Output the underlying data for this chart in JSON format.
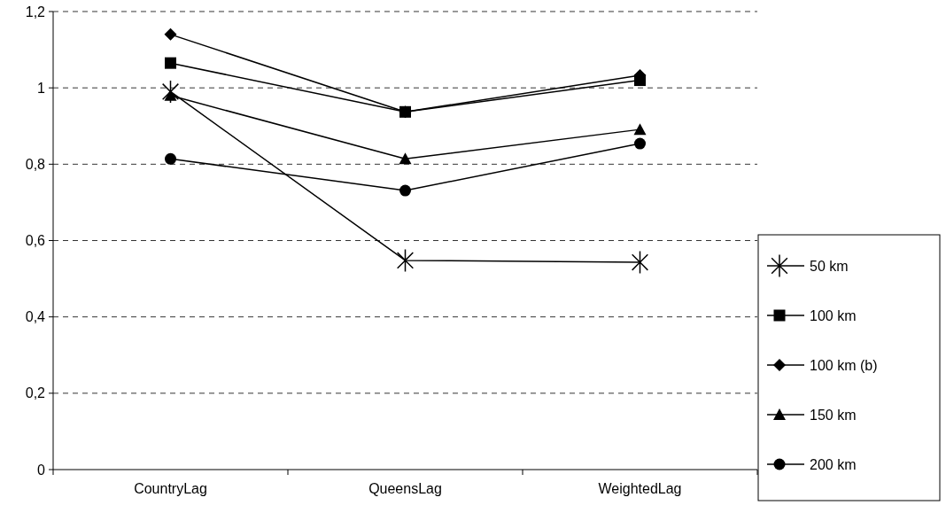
{
  "chart_data": {
    "type": "line",
    "categories": [
      "CountryLag",
      "QueensLag",
      "WeightedLag"
    ],
    "series": [
      {
        "name": "50 km",
        "color": "#000000",
        "marker": "cross",
        "values": [
          0.99,
          0.548,
          0.543
        ]
      },
      {
        "name": "100 km",
        "color": "#000000",
        "marker": "square",
        "values": [
          1.065,
          0.937,
          1.02
        ]
      },
      {
        "name": "100 km (b)",
        "color": "#000000",
        "marker": "diamond",
        "values": [
          1.14,
          0.937,
          1.033
        ]
      },
      {
        "name": "150 km",
        "color": "#000000",
        "marker": "triangle",
        "values": [
          0.98,
          0.814,
          0.891
        ]
      },
      {
        "name": "200 km",
        "color": "#000000",
        "marker": "circle",
        "values": [
          0.814,
          0.731,
          0.854
        ]
      }
    ],
    "ylim": [
      0,
      1.2
    ],
    "yticks": [
      {
        "value": 0,
        "label": "0"
      },
      {
        "value": 0.2,
        "label": "0,2"
      },
      {
        "value": 0.4,
        "label": "0,4"
      },
      {
        "value": 0.6,
        "label": "0,6"
      },
      {
        "value": 0.8,
        "label": "0,8"
      },
      {
        "value": 1,
        "label": "1"
      },
      {
        "value": 1.2,
        "label": "1,2"
      }
    ],
    "grid": "y",
    "legend": "right",
    "line_style": "solid"
  }
}
